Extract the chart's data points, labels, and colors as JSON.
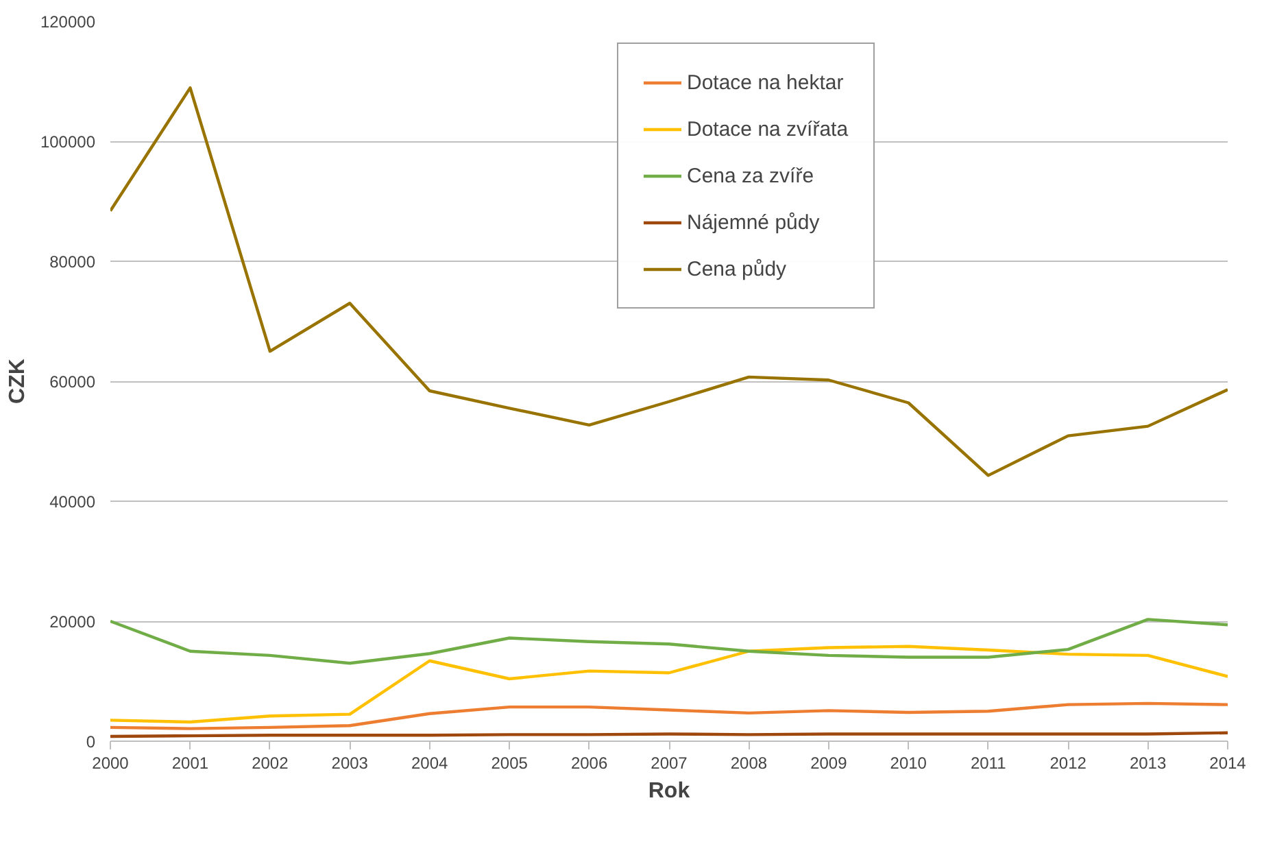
{
  "chart_data": {
    "type": "line",
    "xlabel": "Rok",
    "ylabel": "CZK",
    "x": [
      2000,
      2001,
      2002,
      2003,
      2004,
      2005,
      2006,
      2007,
      2008,
      2009,
      2010,
      2011,
      2012,
      2013,
      2014
    ],
    "xlim": [
      2000,
      2014
    ],
    "xticks": [
      2000,
      2001,
      2002,
      2003,
      2004,
      2005,
      2006,
      2007,
      2008,
      2009,
      2010,
      2011,
      2012,
      2013,
      2014
    ],
    "ylim": [
      0,
      120000
    ],
    "yticks": [
      0,
      20000,
      40000,
      60000,
      80000,
      100000,
      120000
    ],
    "grid": "y",
    "legend": "top right",
    "marker": "none",
    "line_style": "solid",
    "series": [
      {
        "name": "Dotace na hektar",
        "color": "#ed7d31",
        "values": [
          2300,
          2100,
          2300,
          2600,
          4600,
          5700,
          5700,
          5200,
          4700,
          5100,
          4800,
          5000,
          6100,
          6300,
          6100
        ]
      },
      {
        "name": "Dotace na zvířata",
        "color": "#ffc000",
        "values": [
          3500,
          3200,
          4200,
          4500,
          13400,
          10400,
          11700,
          11400,
          15000,
          15600,
          15800,
          15200,
          14500,
          14300,
          10800
        ]
      },
      {
        "name": "Cena za zvíře",
        "color": "#70ad47",
        "values": [
          20000,
          15000,
          14300,
          13000,
          14600,
          17200,
          16600,
          16200,
          15000,
          14300,
          14000,
          14000,
          15300,
          20300,
          19400
        ]
      },
      {
        "name": "Nájemné půdy",
        "color": "#9e480e",
        "values": [
          800,
          900,
          1000,
          1000,
          1000,
          1100,
          1100,
          1200,
          1100,
          1200,
          1200,
          1200,
          1200,
          1200,
          1400
        ]
      },
      {
        "name": "Cena půdy",
        "color": "#997300",
        "values": [
          88400,
          108900,
          65000,
          73000,
          58400,
          55500,
          52700,
          56600,
          60700,
          60200,
          56400,
          44300,
          50900,
          52500,
          58600
        ]
      }
    ]
  }
}
